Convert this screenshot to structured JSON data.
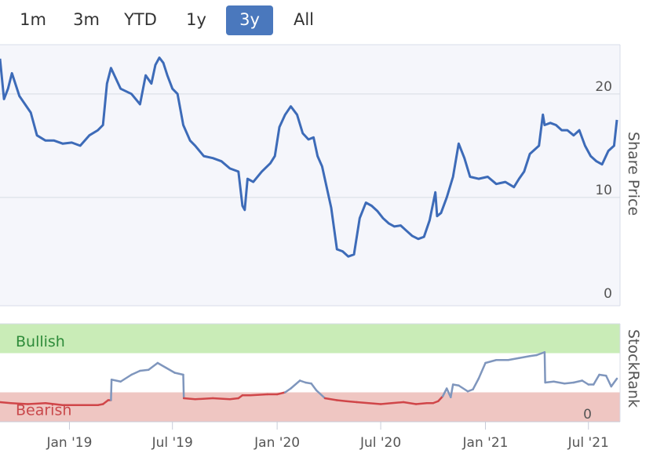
{
  "range_selector": {
    "buttons": [
      "1m",
      "3m",
      "YTD",
      "1y",
      "3y",
      "All"
    ],
    "active": "3y",
    "active_color": "#4a78bd"
  },
  "chart_data": [
    {
      "type": "line",
      "ylabel": "Share Price",
      "ylim": [
        0,
        24
      ],
      "yticks": [
        0,
        10,
        20
      ],
      "grid": true,
      "line_color": "#3d6bb8",
      "x_start": "2018-09-01",
      "x_end": "2021-08-20",
      "series": [
        {
          "x": [
            "2018-09-01",
            "2018-09-08",
            "2018-09-15",
            "2018-09-22",
            "2018-10-05",
            "2018-10-15",
            "2018-10-25",
            "2018-11-05",
            "2018-11-20",
            "2018-12-05",
            "2018-12-20",
            "2019-01-05",
            "2019-01-20",
            "2019-02-05",
            "2019-02-20",
            "2019-03-01",
            "2019-03-08",
            "2019-03-15",
            "2019-04-01",
            "2019-04-20",
            "2019-05-05",
            "2019-05-15",
            "2019-05-25",
            "2019-06-01",
            "2019-06-08",
            "2019-06-15",
            "2019-06-22",
            "2019-07-01",
            "2019-07-10",
            "2019-07-20",
            "2019-08-01",
            "2019-08-10",
            "2019-08-25",
            "2019-09-10",
            "2019-09-25",
            "2019-10-10",
            "2019-10-25",
            "2019-11-01",
            "2019-11-05",
            "2019-11-10",
            "2019-11-20",
            "2019-12-05",
            "2019-12-20",
            "2019-12-28",
            "2020-01-05",
            "2020-01-15",
            "2020-01-25",
            "2020-02-05",
            "2020-02-15",
            "2020-02-25",
            "2020-03-05",
            "2020-03-12",
            "2020-03-20",
            "2020-03-28",
            "2020-04-05",
            "2020-04-15",
            "2020-04-25",
            "2020-05-05",
            "2020-05-15",
            "2020-05-25",
            "2020-06-05",
            "2020-06-15",
            "2020-06-25",
            "2020-07-05",
            "2020-07-15",
            "2020-07-25",
            "2020-08-05",
            "2020-08-15",
            "2020-08-25",
            "2020-09-05",
            "2020-09-15",
            "2020-09-25",
            "2020-10-05",
            "2020-10-08",
            "2020-10-15",
            "2020-10-25",
            "2020-11-05",
            "2020-11-15",
            "2020-11-25",
            "2020-12-05",
            "2020-12-20",
            "2021-01-05",
            "2021-01-20",
            "2021-02-05",
            "2021-02-20",
            "2021-03-01",
            "2021-03-10",
            "2021-03-20",
            "2021-04-05",
            "2021-04-12",
            "2021-04-15",
            "2021-04-25",
            "2021-05-05",
            "2021-05-15",
            "2021-05-25",
            "2021-06-05",
            "2021-06-15",
            "2021-06-25",
            "2021-07-05",
            "2021-07-15",
            "2021-07-25",
            "2021-08-05",
            "2021-08-15",
            "2021-08-20"
          ],
          "y": [
            23.4,
            19.5,
            20.5,
            22.0,
            19.8,
            19.0,
            18.2,
            16.0,
            15.5,
            15.5,
            15.2,
            15.3,
            15.0,
            16.0,
            16.5,
            17.0,
            21.0,
            22.5,
            20.5,
            20.0,
            19.0,
            21.8,
            21.0,
            22.8,
            23.5,
            23.0,
            21.8,
            20.5,
            20.0,
            17.0,
            15.5,
            15.0,
            14.0,
            13.8,
            13.5,
            12.8,
            12.5,
            9.2,
            8.8,
            11.8,
            11.5,
            12.5,
            13.3,
            14.0,
            16.8,
            18.0,
            18.8,
            18.0,
            16.2,
            15.6,
            15.8,
            14.0,
            13.0,
            11.0,
            9.0,
            5.0,
            4.8,
            4.3,
            4.5,
            8.0,
            9.5,
            9.2,
            8.7,
            8.0,
            7.5,
            7.2,
            7.3,
            6.8,
            6.3,
            6.0,
            6.2,
            7.8,
            10.5,
            8.2,
            8.5,
            10.0,
            12.0,
            15.2,
            13.8,
            12.0,
            11.8,
            12.0,
            11.3,
            11.5,
            11.0,
            11.8,
            12.5,
            14.2,
            15.0,
            18.0,
            17.0,
            17.2,
            17.0,
            16.5,
            16.5,
            16.0,
            16.5,
            15.0,
            14.0,
            13.5,
            13.2,
            14.5,
            15.0,
            17.5
          ]
        }
      ]
    },
    {
      "type": "line",
      "ylabel": "StockRank",
      "ylim": [
        0,
        100
      ],
      "yticks": [
        0
      ],
      "bands": [
        {
          "label": "Bullish",
          "from": 70,
          "to": 100,
          "color": "#c9ecb7",
          "text_color": "#2e8b3a"
        },
        {
          "label": "Bearish",
          "from": 0,
          "to": 30,
          "color": "#efc6c2",
          "text_color": "#c9484b"
        }
      ],
      "line_color_above": "#7f96bd",
      "line_color_below": "#d04649",
      "threshold": 30,
      "series": [
        {
          "x": [
            "2018-09-01",
            "2018-09-20",
            "2018-10-20",
            "2018-11-20",
            "2018-12-20",
            "2019-01-20",
            "2019-02-20",
            "2019-03-01",
            "2019-03-10",
            "2019-03-15",
            "2019-03-16",
            "2019-04-01",
            "2019-04-20",
            "2019-05-05",
            "2019-05-20",
            "2019-06-05",
            "2019-06-20",
            "2019-07-05",
            "2019-07-20",
            "2019-07-21",
            "2019-08-10",
            "2019-09-10",
            "2019-10-10",
            "2019-10-25",
            "2019-11-01",
            "2019-11-15",
            "2019-12-15",
            "2020-01-01",
            "2020-01-15",
            "2020-01-25",
            "2020-02-10",
            "2020-02-20",
            "2020-03-01",
            "2020-03-10",
            "2020-03-25",
            "2020-04-15",
            "2020-05-01",
            "2020-05-20",
            "2020-06-10",
            "2020-07-01",
            "2020-07-20",
            "2020-08-10",
            "2020-09-01",
            "2020-09-20",
            "2020-10-01",
            "2020-10-10",
            "2020-10-18",
            "2020-10-25",
            "2020-11-01",
            "2020-11-05",
            "2020-11-15",
            "2020-12-01",
            "2020-12-10",
            "2020-12-20",
            "2021-01-01",
            "2021-01-20",
            "2021-02-10",
            "2021-03-01",
            "2021-03-20",
            "2021-04-01",
            "2021-04-15",
            "2021-04-16",
            "2021-05-01",
            "2021-05-20",
            "2021-06-05",
            "2021-06-20",
            "2021-07-01",
            "2021-07-10",
            "2021-07-20",
            "2021-08-01",
            "2021-08-10",
            "2021-08-20"
          ],
          "y": [
            20,
            19,
            18,
            19,
            17,
            17,
            17,
            18,
            22,
            22,
            43,
            41,
            48,
            52,
            53,
            60,
            55,
            50,
            48,
            24,
            23,
            24,
            23,
            24,
            27,
            27,
            28,
            28,
            30,
            34,
            42,
            40,
            39,
            32,
            24,
            22,
            21,
            20,
            19,
            18,
            19,
            20,
            18,
            19,
            19,
            21,
            26,
            34,
            25,
            38,
            37,
            31,
            33,
            44,
            60,
            63,
            63,
            65,
            67,
            68,
            71,
            40,
            41,
            39,
            40,
            42,
            38,
            38,
            48,
            47,
            36,
            44
          ]
        }
      ]
    }
  ],
  "x_axis": {
    "ticks": [
      {
        "date": "2019-01-01",
        "label": "Jan '19"
      },
      {
        "date": "2019-07-01",
        "label": "Jul '19"
      },
      {
        "date": "2020-01-01",
        "label": "Jan '20"
      },
      {
        "date": "2020-07-01",
        "label": "Jul '20"
      },
      {
        "date": "2021-01-01",
        "label": "Jan '21"
      },
      {
        "date": "2021-07-01",
        "label": "Jul '21"
      }
    ]
  }
}
